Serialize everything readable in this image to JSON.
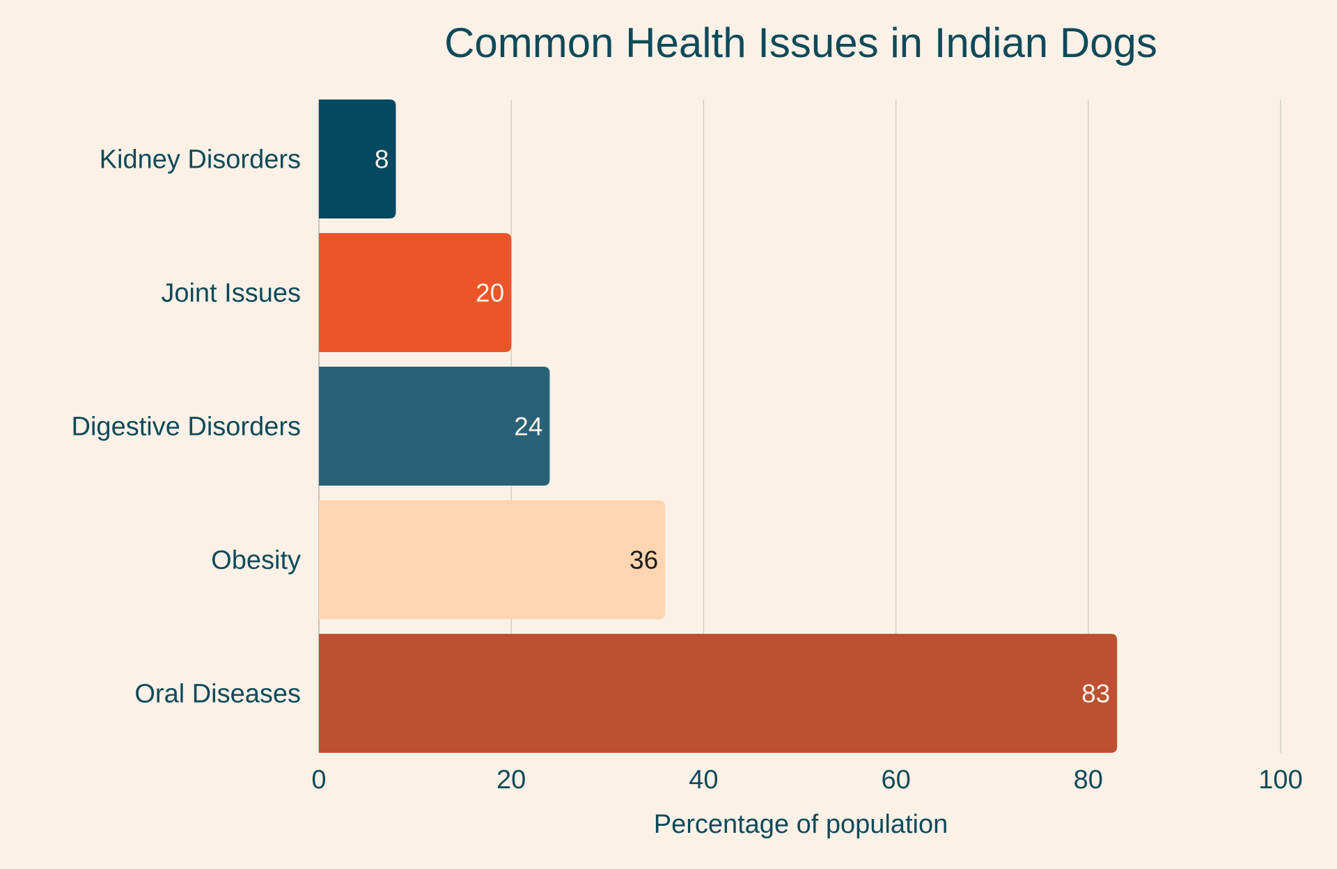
{
  "chart_data": {
    "type": "bar",
    "orientation": "horizontal",
    "title": "Common Health Issues in Indian Dogs",
    "xlabel": "Percentage of population",
    "ylabel": "",
    "xlim": [
      0,
      100
    ],
    "x_ticks": [
      "0",
      "20",
      "40",
      "60",
      "80",
      "100"
    ],
    "grid": true,
    "legend": "none",
    "categories": [
      "Kidney Disorders",
      "Joint Issues",
      "Digestive Disorders",
      "Obesity",
      "Oral Diseases"
    ],
    "values": [
      8,
      20,
      24,
      36,
      83
    ],
    "value_labels": [
      "8",
      "20",
      "24",
      "36",
      "83"
    ],
    "bar_colors": [
      "#04495f",
      "#ea5529",
      "#296277",
      "#fdd6b1",
      "#bd5031"
    ],
    "label_colors": [
      "#fcf1e7",
      "#fcf1e7",
      "#fcf1e7",
      "#1b1b1b",
      "#fcf1e7"
    ]
  },
  "colors": {
    "background": "#fcf1e7",
    "text": "#0f4a5a"
  }
}
